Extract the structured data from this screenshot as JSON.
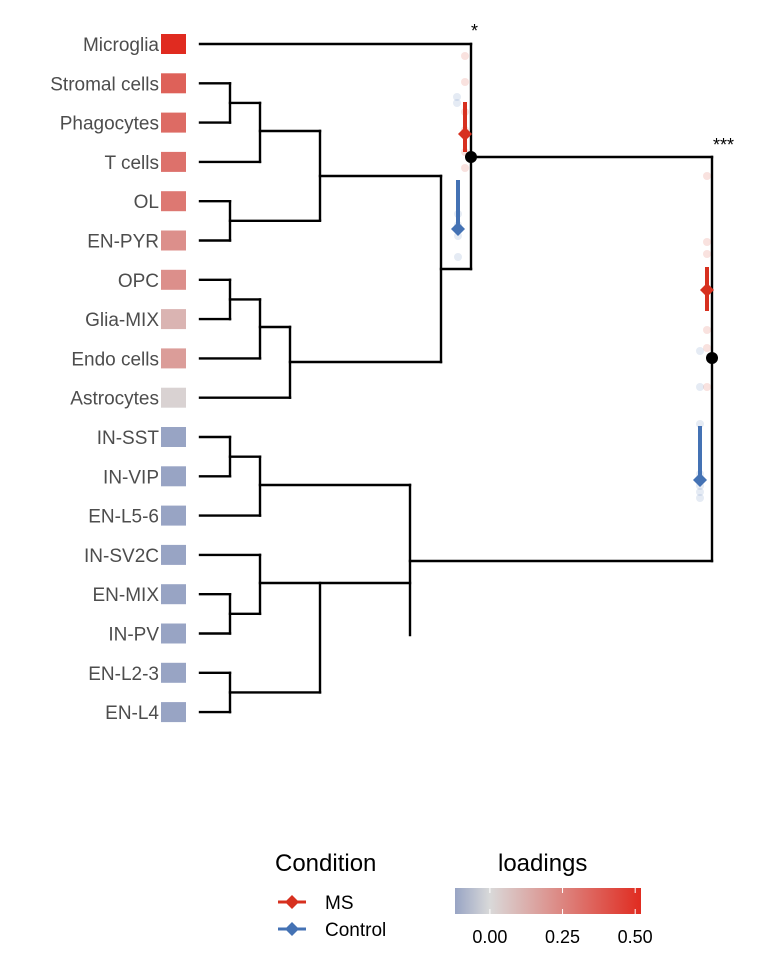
{
  "chart_data": {
    "type": "dendrogram",
    "leaves": [
      {
        "label": "Microglia",
        "loading": 0.52
      },
      {
        "label": "Stromal cells",
        "loading": 0.36
      },
      {
        "label": "Phagocytes",
        "loading": 0.33
      },
      {
        "label": "T cells",
        "loading": 0.31
      },
      {
        "label": "OL",
        "loading": 0.29
      },
      {
        "label": "EN-PYR",
        "loading": 0.22
      },
      {
        "label": "OPC",
        "loading": 0.22
      },
      {
        "label": "Glia-MIX",
        "loading": 0.11
      },
      {
        "label": "Endo cells",
        "loading": 0.18
      },
      {
        "label": "Astrocytes",
        "loading": 0.02
      },
      {
        "label": "IN-SST",
        "loading": -0.14
      },
      {
        "label": "IN-VIP",
        "loading": -0.14
      },
      {
        "label": "EN-L5-6",
        "loading": -0.18
      },
      {
        "label": "IN-SV2C",
        "loading": -0.17
      },
      {
        "label": "EN-MIX",
        "loading": -0.19
      },
      {
        "label": "IN-PV",
        "loading": -0.2
      },
      {
        "label": "EN-L2-3",
        "loading": -0.19
      },
      {
        "label": "EN-L4",
        "loading": -0.19
      }
    ],
    "significance": [
      {
        "node": "microglia-vs-rest-of-upper-group",
        "label": "*"
      },
      {
        "node": "root",
        "label": "***"
      }
    ],
    "condition_legend": {
      "title": "Condition",
      "entries": [
        {
          "label": "MS",
          "color": "#d7301f"
        },
        {
          "label": "Control",
          "color": "#4472b4"
        }
      ]
    },
    "loadings_legend": {
      "title": "loadings",
      "ticks": [
        "0.00",
        "0.25",
        "0.50"
      ],
      "range": [
        -0.12,
        0.52
      ],
      "colors": {
        "low": "#98a4c4",
        "mid": "#d9d9d9",
        "high": "#e02b20"
      }
    }
  }
}
